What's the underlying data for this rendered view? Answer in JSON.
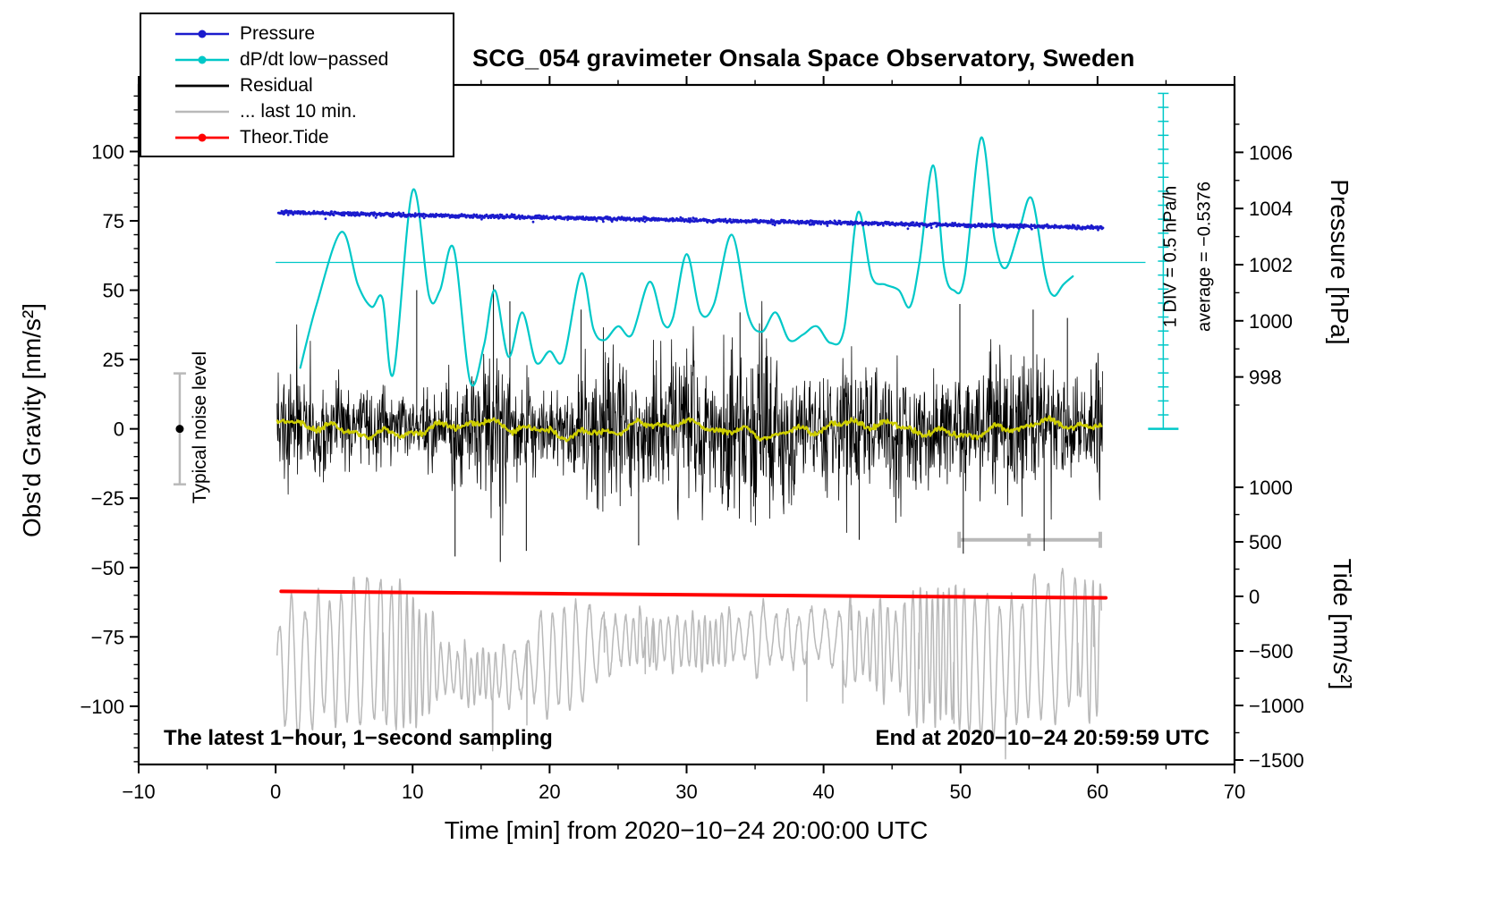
{
  "title": "SCG_054 gravimeter Onsala Space Observatory, Sweden",
  "legend": {
    "items": [
      {
        "id": "pressure",
        "label": "Pressure",
        "color": "#1b1bcd",
        "marker": true,
        "line_width": 2.4
      },
      {
        "id": "dpdt-low-passed",
        "label": "dP/dt low−passed",
        "color": "#00c8c8",
        "marker": true,
        "line_width": 2.4
      },
      {
        "id": "residual",
        "label": "Residual",
        "color": "#000000",
        "marker": false,
        "line_width": 2.8
      },
      {
        "id": "last-10-min",
        "label": "... last 10 min.",
        "color": "#b9b9b9",
        "marker": false,
        "line_width": 2.4
      },
      {
        "id": "theor-tide",
        "label": "Theor.Tide",
        "color": "#ff0000",
        "marker": true,
        "line_width": 2.8
      }
    ]
  },
  "annotations": {
    "noise_label": "Typical noise level",
    "div_label": "1 DIV = 0.5 hPa/h",
    "average_label": "average = −0.5376",
    "sampling_label": "The latest 1−hour, 1−second sampling",
    "end_label": "End at 2020−10−24 20:59:59 UTC"
  },
  "chart_data": {
    "type": "line",
    "title": "SCG_054 gravimeter Onsala Space Observatory, Sweden",
    "grid": false,
    "legend_position": "top-left",
    "x_axis": {
      "label": "Time [min] from 2020−10−24 20:00:00 UTC",
      "range": [
        -10,
        70
      ],
      "major_ticks": [
        -10,
        0,
        10,
        20,
        30,
        40,
        50,
        60,
        70
      ],
      "tick_labels": [
        "−10",
        "0",
        "10",
        "20",
        "30",
        "40",
        "50",
        "60",
        "70"
      ],
      "minor_step": 5,
      "tick_window": [
        -10,
        70
      ]
    },
    "y_axes": {
      "gravity": {
        "label": "Obs'd Gravity [nm/s²]",
        "side": "left",
        "range": [
          -121,
          124
        ],
        "major_ticks": [
          -100,
          -75,
          -50,
          -25,
          0,
          25,
          50,
          75,
          100
        ],
        "tick_labels": [
          "−100",
          "−75",
          "−50",
          "−25",
          "0",
          "25",
          "50",
          "75",
          "100"
        ],
        "minor_step": 5,
        "tick_window": [
          -120,
          120
        ]
      },
      "pressure": {
        "label": "Pressure [hPa]",
        "side": "right-top",
        "range": [
          984.2,
          1008.4
        ],
        "major_ticks": [
          998,
          1000,
          1002,
          1004,
          1006
        ],
        "tick_labels": [
          "998",
          "1000",
          "1002",
          "1004",
          "1006"
        ],
        "minor_step": 1,
        "tick_window": [
          997,
          1007.5
        ]
      },
      "tide": {
        "label": "Tide [nm/s²]",
        "side": "right-bottom",
        "range": [
          -1541,
          4689
        ],
        "major_ticks": [
          -1500,
          -1000,
          -500,
          0,
          500,
          1000
        ],
        "tick_labels": [
          "−1500",
          "−1000",
          "−500",
          "0",
          "500",
          "1000"
        ],
        "minor_step": 250,
        "tick_window": [
          -1541,
          1100
        ]
      }
    },
    "series": [
      {
        "id": "pressure",
        "name": "Pressure",
        "axis": "pressure",
        "style": "dots",
        "color": "#1b1bcd",
        "t_range": [
          0.2,
          60.4
        ],
        "step": 0.04,
        "start_hpa": 1003.86,
        "slope_hpa_per_hour": -0.5376,
        "noise_hpa": 0.033,
        "dot_radius": 1.4,
        "seed": 7
      },
      {
        "id": "dpdt",
        "name": "dP/dt low−passed",
        "axis": "gravity",
        "style": "smooth-line",
        "color": "#00c8c8",
        "width": 2.2,
        "keypoints": [
          [
            1.8,
            22
          ],
          [
            3,
            45
          ],
          [
            4.8,
            71
          ],
          [
            6,
            52
          ],
          [
            7,
            44
          ],
          [
            7.8,
            47
          ],
          [
            8.6,
            20
          ],
          [
            10,
            86
          ],
          [
            11.2,
            48
          ],
          [
            12,
            50
          ],
          [
            13,
            65
          ],
          [
            14.2,
            17
          ],
          [
            15.2,
            30
          ],
          [
            16,
            50
          ],
          [
            17,
            26
          ],
          [
            18,
            42
          ],
          [
            19,
            24
          ],
          [
            20,
            28
          ],
          [
            21,
            25
          ],
          [
            22.3,
            56
          ],
          [
            23.2,
            36
          ],
          [
            24,
            32
          ],
          [
            25,
            37
          ],
          [
            26,
            34
          ],
          [
            27.3,
            53
          ],
          [
            28.3,
            38
          ],
          [
            29,
            40
          ],
          [
            30,
            63
          ],
          [
            31,
            42
          ],
          [
            32,
            45
          ],
          [
            33.3,
            70
          ],
          [
            34.5,
            41
          ],
          [
            35.5,
            35
          ],
          [
            36.5,
            42
          ],
          [
            37.5,
            32
          ],
          [
            38.5,
            34
          ],
          [
            39.5,
            37
          ],
          [
            40.5,
            31
          ],
          [
            41.5,
            36
          ],
          [
            42.5,
            78
          ],
          [
            43.5,
            55
          ],
          [
            44.5,
            52
          ],
          [
            45.5,
            50
          ],
          [
            46.3,
            44
          ],
          [
            47,
            60
          ],
          [
            48,
            95
          ],
          [
            48.8,
            58
          ],
          [
            49.5,
            50
          ],
          [
            50.3,
            55
          ],
          [
            51.5,
            105
          ],
          [
            52.5,
            68
          ],
          [
            53.3,
            58
          ],
          [
            54.3,
            72
          ],
          [
            55.2,
            83
          ],
          [
            56.2,
            55
          ],
          [
            56.8,
            48
          ],
          [
            57.5,
            52
          ],
          [
            58.2,
            55
          ]
        ]
      },
      {
        "id": "residual",
        "name": "Residual",
        "axis": "gravity",
        "style": "noise-line",
        "color": "#000000",
        "width": 0.8,
        "t_range": [
          0.1,
          60.4
        ],
        "step": 0.03,
        "rms": 9,
        "clip": [
          -47,
          46
        ],
        "seed": 1234,
        "feature_spikes": [
          [
            10.3,
            50
          ],
          [
            13.1,
            -46
          ],
          [
            15.9,
            52
          ],
          [
            16.4,
            -48
          ],
          [
            17.1,
            46
          ],
          [
            18.3,
            -44
          ],
          [
            22.3,
            43
          ],
          [
            26.5,
            -42
          ],
          [
            33.9,
            42
          ],
          [
            42.6,
            -40
          ],
          [
            49.95,
            45
          ],
          [
            50.2,
            -45
          ],
          [
            55.3,
            43
          ],
          [
            56.1,
            -44
          ],
          [
            57.8,
            40
          ]
        ]
      },
      {
        "id": "residual-lowpass",
        "name": "Residual smoothed (yellow)",
        "axis": "gravity",
        "style": "wiggle-line",
        "color": "#cdcd00",
        "width": 2.5,
        "t_range": [
          0.1,
          60.4
        ],
        "step": 0.08,
        "seed": 99
      },
      {
        "id": "last10",
        "name": "... last 10 min.",
        "axis": "gravity",
        "style": "oscillation",
        "color": "#b9b9b9",
        "width": 1.5,
        "t_range": [
          0.1,
          60.3
        ],
        "step": 0.02,
        "center": -84,
        "clip": [
          -119,
          -46
        ],
        "seed": 555
      },
      {
        "id": "tide",
        "name": "Theor.Tide",
        "axis": "gravity",
        "style": "smooth-line",
        "color": "#ff0000",
        "width": 4,
        "keypoints": [
          [
            0.4,
            -58.6
          ],
          [
            20,
            -59.4
          ],
          [
            40,
            -60.2
          ],
          [
            60.6,
            -60.9
          ]
        ]
      }
    ],
    "overlays": {
      "average_line": {
        "y": 60,
        "x_range": [
          0,
          63.5
        ],
        "color": "#00c8c8"
      },
      "div_ruler": {
        "x": 64.8,
        "y_range": [
          0,
          121
        ],
        "tick_step": 5.04,
        "color": "#00c8c8",
        "label": "1 DIV = 0.5 hPa/h",
        "average_label": "average = −0.5376"
      },
      "noise_marker": {
        "x": -7,
        "y": 0,
        "error": 20,
        "bar_color": "#b9b9b9",
        "dot_color": "#000000",
        "label": "Typical noise level"
      },
      "window_bar": {
        "y": -40,
        "x_range": [
          49.9,
          60.2
        ],
        "center_tick": 55,
        "color": "#b9b9b9"
      }
    },
    "footnotes": {
      "left": "The latest 1−hour, 1−second sampling",
      "right": "End at 2020−10−24 20:59:59 UTC"
    }
  }
}
